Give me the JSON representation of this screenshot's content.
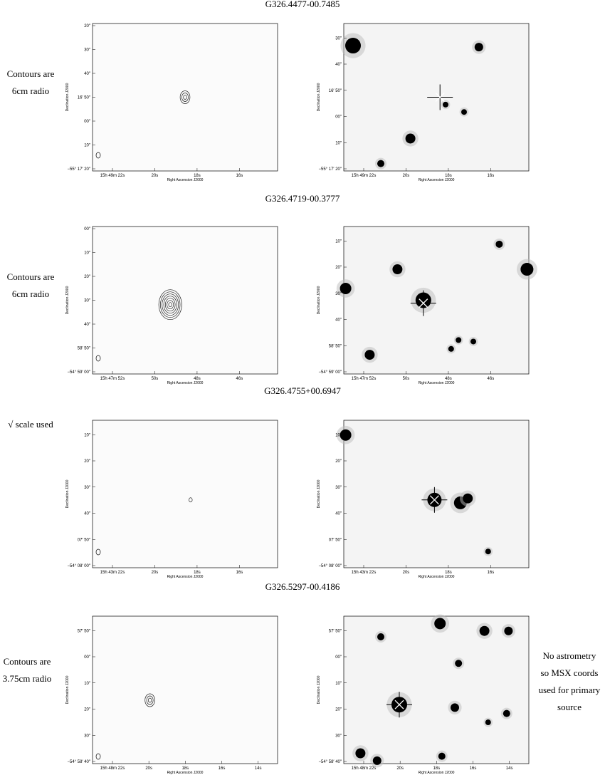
{
  "rows": [
    {
      "title": "G326.4477-00.7485",
      "note": [
        "Contours are",
        "6cm radio"
      ],
      "left": {
        "yticks": [
          "20″",
          "30″",
          "40″",
          "16′ 50″",
          "00″",
          "10″",
          "−55° 17′ 20″"
        ],
        "xticks": [
          "15h 49m 22s",
          "20s",
          "18s",
          "16s"
        ],
        "ylabel": "Declination J2000",
        "xlabel": "Right Ascension J2000"
      },
      "right": {
        "yticks": [
          "30″",
          "40″",
          "16′ 50″",
          "00″",
          "10″",
          "−55° 17′ 20″"
        ],
        "xticks": [
          "15h 49m 22s",
          "20s",
          "18s",
          "16s"
        ],
        "ylabel": "Declination J2000",
        "xlabel": "Right Ascension J2000"
      }
    },
    {
      "title": "G326.4719-00.3777",
      "note": [
        "Contours are",
        "6cm radio"
      ],
      "left": {
        "yticks": [
          "00″",
          "10″",
          "20″",
          "30″",
          "40″",
          "58′ 50″",
          "−54° 59′ 00″"
        ],
        "xticks": [
          "15h 47m 52s",
          "50s",
          "48s",
          "46s"
        ],
        "ylabel": "Declination J2000",
        "xlabel": "Right Ascension J2000"
      },
      "right": {
        "yticks": [
          "10″",
          "20″",
          "30″",
          "40″",
          "58′ 50″",
          "−54° 59′ 00″"
        ],
        "xticks": [
          "15h 47m 52s",
          "50s",
          "48s",
          "46s"
        ],
        "ylabel": "Declination J2000",
        "xlabel": "Right Ascension J2000"
      }
    },
    {
      "title": "G326.4755+00.6947",
      "note": [
        "√ scale used"
      ],
      "left": {
        "yticks": [
          "10″",
          "20″",
          "30″",
          "40″",
          "07′ 50″",
          "−54° 08′ 00″"
        ],
        "xticks": [
          "15h 43m 22s",
          "20s",
          "18s",
          "16s"
        ],
        "ylabel": "Declination J2000",
        "xlabel": "Right Ascension J2000"
      },
      "right": {
        "yticks": [
          "10″",
          "20″",
          "30″",
          "40″",
          "07′ 50″",
          "−54° 08′ 00″"
        ],
        "xticks": [
          "15h 43m 22s",
          "20s",
          "18s",
          "16s"
        ],
        "ylabel": "Declination J2000",
        "xlabel": "Right Ascension J2000"
      }
    },
    {
      "title": "G326.5297-00.4186",
      "note": [
        "Contours are",
        "3.75cm radio"
      ],
      "right_note": [
        "No astrometry",
        "so MSX coords",
        "used for primary",
        "source"
      ],
      "left": {
        "yticks": [
          "57′ 50″",
          "00″",
          "10″",
          "20″",
          "30″",
          "−54° 58′ 40″"
        ],
        "xticks": [
          "15h 48m 22s",
          "20s",
          "18s",
          "16s",
          "14s"
        ],
        "ylabel": "Declination J2000",
        "xlabel": "Right Ascension J2000"
      },
      "right": {
        "yticks": [
          "57′ 50″",
          "00″",
          "10″",
          "20″",
          "30″",
          "−54° 58′ 40″"
        ],
        "xticks": [
          "15h 48m 22s",
          "20s",
          "18s",
          "16s",
          "14s"
        ],
        "ylabel": "Declination J2000",
        "xlabel": "Right Ascension J2000"
      }
    }
  ]
}
